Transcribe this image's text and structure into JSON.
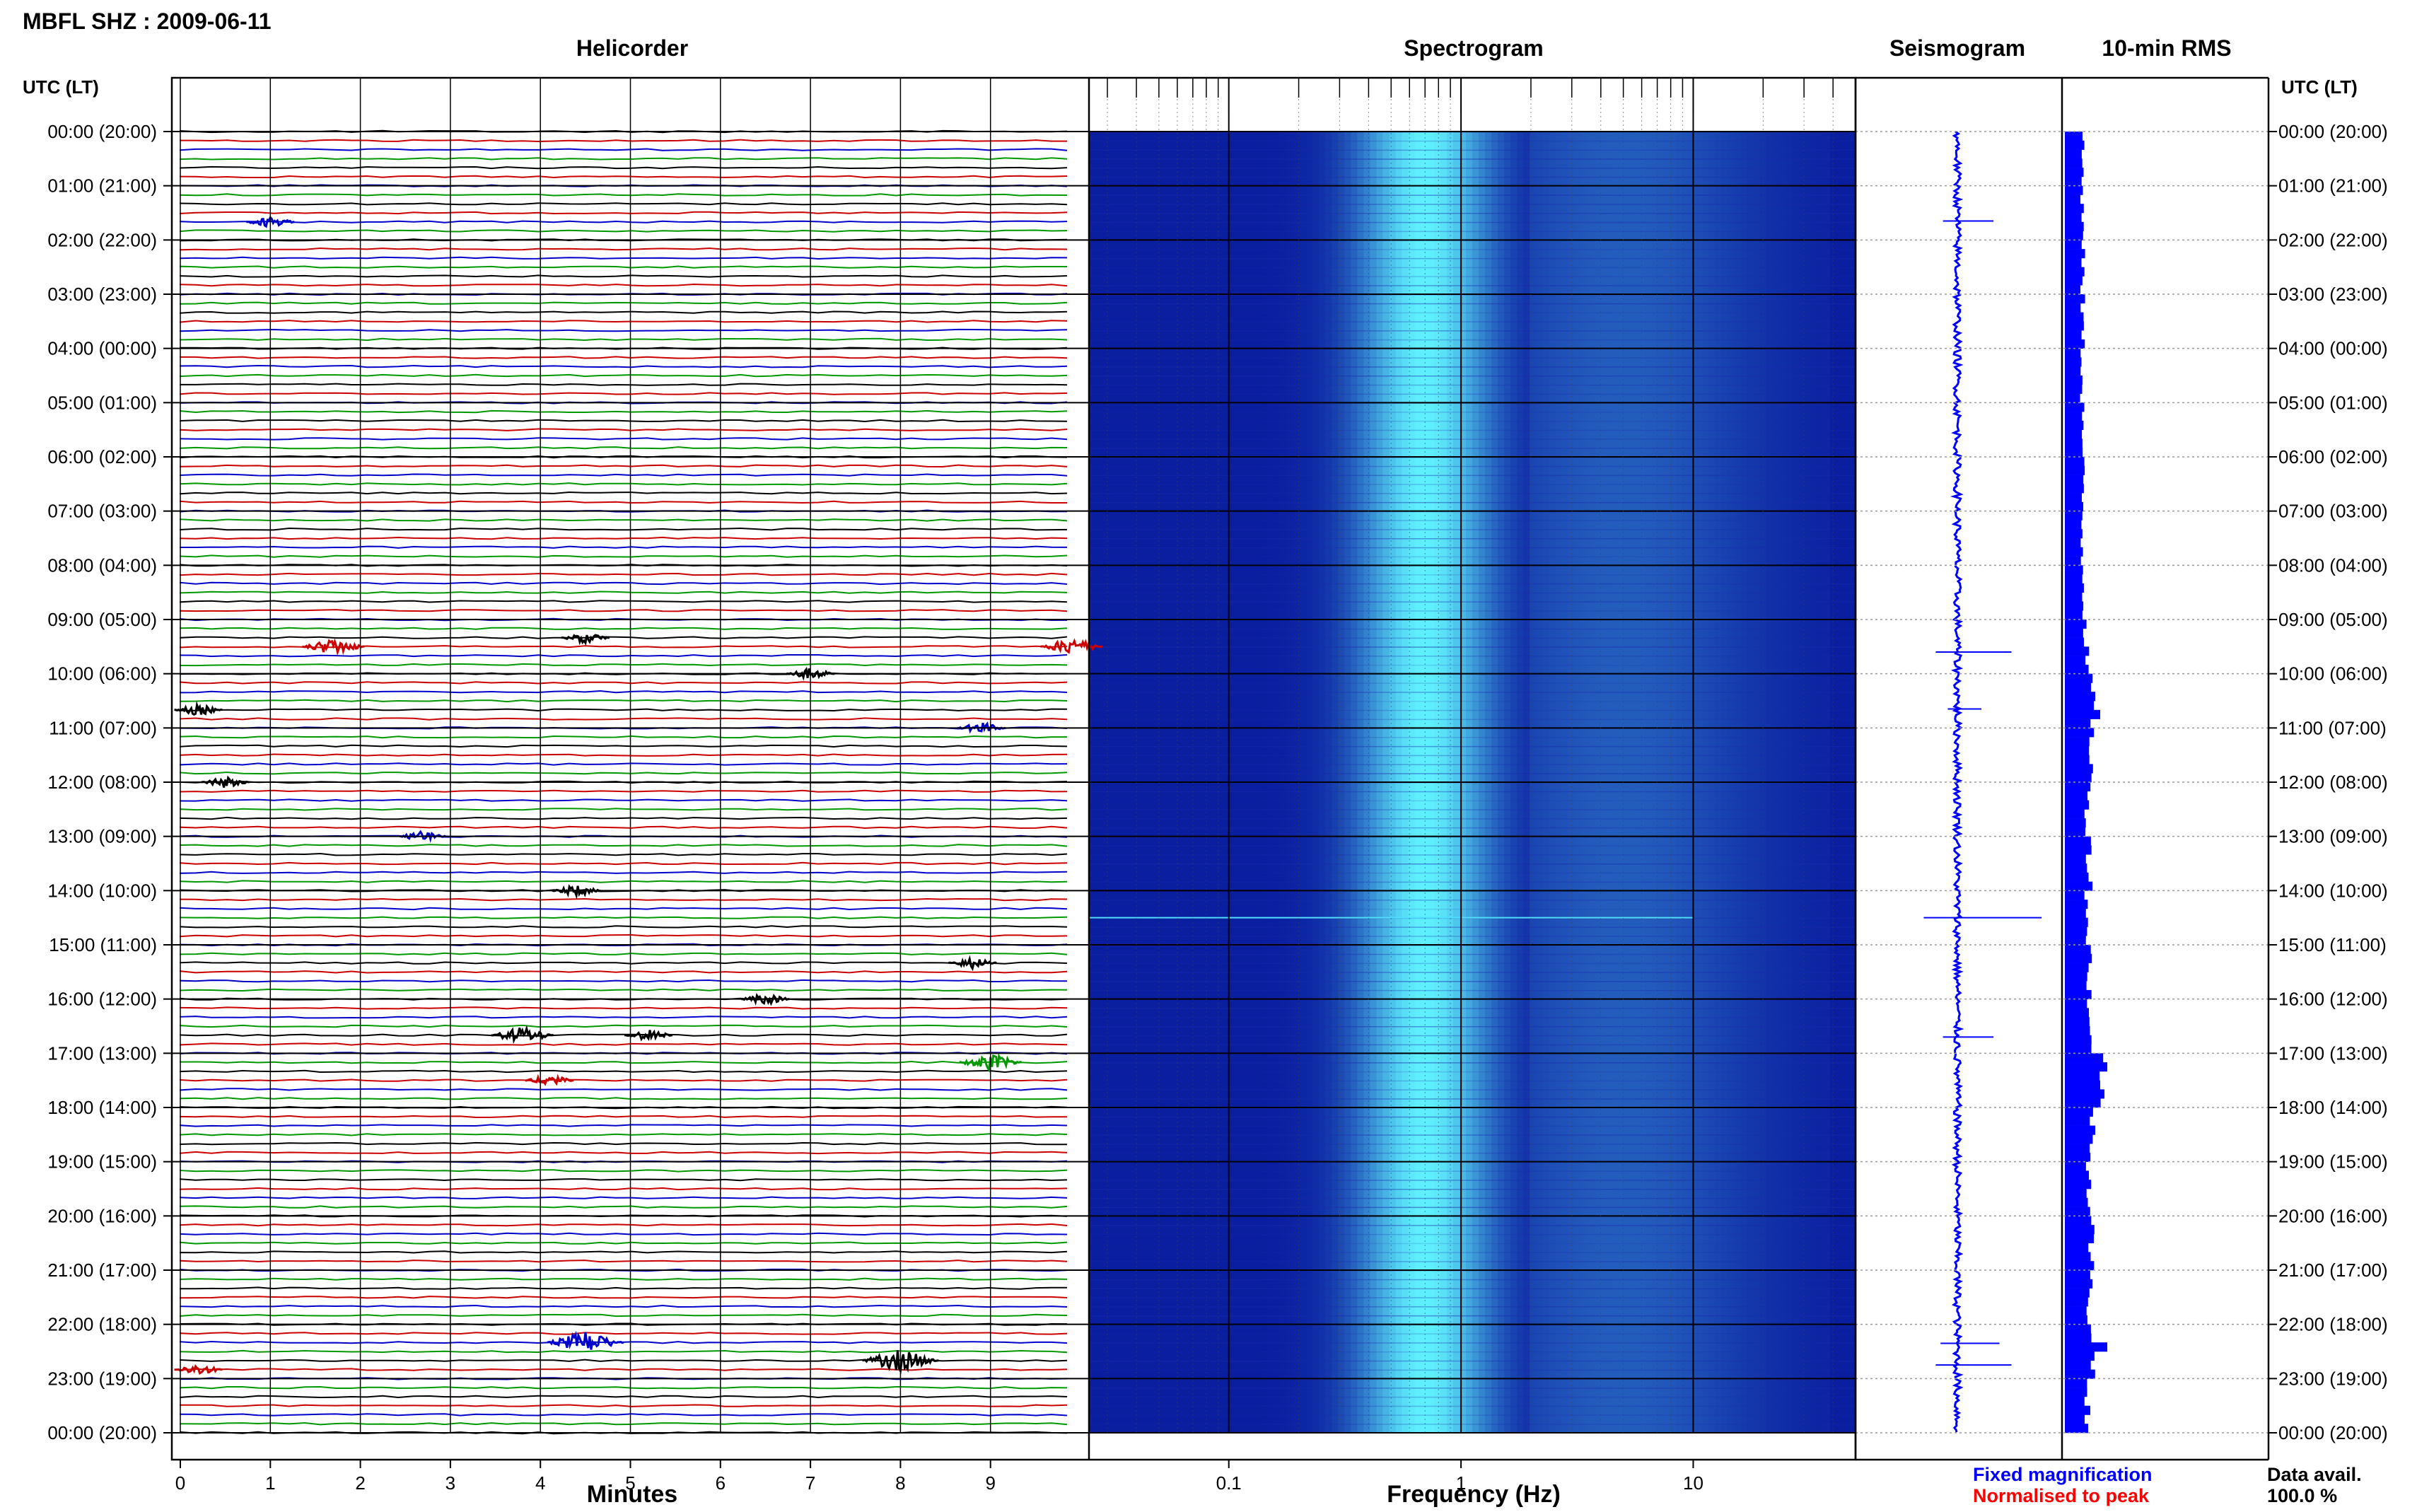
{
  "title": "MBFL SHZ : 2009-06-11",
  "panels": {
    "helicorder": "Helicorder",
    "spectrogram": "Spectrogram",
    "seismogram": "Seismogram",
    "rms": "10-min RMS"
  },
  "utc_label": "UTC (LT)",
  "axis_labels": {
    "minutes": "Minutes",
    "frequency": "Frequency (Hz)"
  },
  "legend": {
    "fixed": "Fixed magnification",
    "normalised": "Normalised to peak"
  },
  "data_avail": {
    "label": "Data avail.",
    "value": "100.0 %"
  },
  "colors": {
    "trace_cycle": [
      "#000000",
      "#cc0000",
      "#0000cc",
      "#009900"
    ],
    "fixed": "#0000ff",
    "normalised": "#ff0000",
    "spectrogram_dark": "#0a1ea0",
    "spectrogram_peak": "#5ff0ff",
    "rms_bar": "#0000ff"
  },
  "chart_data": [
    {
      "type": "line",
      "name": "helicorder",
      "xlabel": "Minutes",
      "xlim": [
        0,
        10
      ],
      "x_ticks": [
        "0",
        "1",
        "2",
        "3",
        "4",
        "5",
        "6",
        "7",
        "8",
        "9"
      ],
      "rows_per_hour": 6,
      "hours": 24,
      "events": [
        {
          "utc_hour": 1.65,
          "minute": 1.0,
          "amp": 2
        },
        {
          "utc_hour": 9.3,
          "minute": 4.5,
          "amp": 2
        },
        {
          "utc_hour": 9.5,
          "minute": 1.7,
          "amp": 3
        },
        {
          "utc_hour": 9.5,
          "minute": 9.9,
          "amp": 3
        },
        {
          "utc_hour": 10.0,
          "minute": 7.0,
          "amp": 2
        },
        {
          "utc_hour": 10.65,
          "minute": 0.2,
          "amp": 2
        },
        {
          "utc_hour": 11.0,
          "minute": 8.9,
          "amp": 2
        },
        {
          "utc_hour": 12.0,
          "minute": 0.5,
          "amp": 2
        },
        {
          "utc_hour": 13.0,
          "minute": 2.7,
          "amp": 2
        },
        {
          "utc_hour": 14.0,
          "minute": 4.4,
          "amp": 2
        },
        {
          "utc_hour": 15.3,
          "minute": 8.8,
          "amp": 2
        },
        {
          "utc_hour": 16.0,
          "minute": 6.5,
          "amp": 2
        },
        {
          "utc_hour": 16.65,
          "minute": 3.8,
          "amp": 3
        },
        {
          "utc_hour": 16.65,
          "minute": 5.2,
          "amp": 2
        },
        {
          "utc_hour": 17.15,
          "minute": 9.0,
          "amp": 3
        },
        {
          "utc_hour": 17.5,
          "minute": 4.1,
          "amp": 2
        },
        {
          "utc_hour": 22.3,
          "minute": 4.5,
          "amp": 4
        },
        {
          "utc_hour": 22.65,
          "minute": 8.0,
          "amp": 4
        },
        {
          "utc_hour": 22.8,
          "minute": 0.2,
          "amp": 2
        }
      ]
    },
    {
      "type": "heatmap",
      "name": "spectrogram",
      "xlabel": "Frequency (Hz)",
      "x_scale": "log",
      "xlim": [
        0.025,
        50
      ],
      "x_ticks": [
        "0.1",
        "1",
        "10"
      ],
      "peak_band_hz": [
        0.35,
        1.9
      ],
      "peak_center_hz": 0.7,
      "hours": 24
    },
    {
      "type": "line",
      "name": "seismogram",
      "hours": 24,
      "spikes": [
        {
          "utc_hour": 1.65,
          "amp": 0.3
        },
        {
          "utc_hour": 9.6,
          "amp": 0.45
        },
        {
          "utc_hour": 10.65,
          "amp": 0.2
        },
        {
          "utc_hour": 14.5,
          "amp": 0.7
        },
        {
          "utc_hour": 16.7,
          "amp": 0.3
        },
        {
          "utc_hour": 22.35,
          "amp": 0.35
        },
        {
          "utc_hour": 22.75,
          "amp": 0.45
        }
      ]
    },
    {
      "type": "bar",
      "name": "10-min RMS",
      "hours": 24,
      "bars_per_hour": 6,
      "base_level": 0.55,
      "hourly_level": [
        0.5,
        0.5,
        0.5,
        0.5,
        0.5,
        0.5,
        0.5,
        0.5,
        0.55,
        0.6,
        0.75,
        0.75,
        0.65,
        0.7,
        0.65,
        0.7,
        0.7,
        1.0,
        0.8,
        0.7,
        0.75,
        0.7,
        0.8,
        0.65
      ],
      "peaks": [
        {
          "utc_hour": 10.7,
          "value": 1.0
        },
        {
          "utc_hour": 17.2,
          "value": 1.2
        },
        {
          "utc_hour": 17.5,
          "value": 1.0
        },
        {
          "utc_hour": 22.4,
          "value": 1.2
        }
      ]
    }
  ],
  "time_labels": [
    "00:00 (20:00)",
    "01:00 (21:00)",
    "02:00 (22:00)",
    "03:00 (23:00)",
    "04:00 (00:00)",
    "05:00 (01:00)",
    "06:00 (02:00)",
    "07:00 (03:00)",
    "08:00 (04:00)",
    "09:00 (05:00)",
    "10:00 (06:00)",
    "11:00 (07:00)",
    "12:00 (08:00)",
    "13:00 (09:00)",
    "14:00 (10:00)",
    "15:00 (11:00)",
    "16:00 (12:00)",
    "17:00 (13:00)",
    "18:00 (14:00)",
    "19:00 (15:00)",
    "20:00 (16:00)",
    "21:00 (17:00)",
    "22:00 (18:00)",
    "23:00 (19:00)",
    "00:00 (20:00)"
  ]
}
